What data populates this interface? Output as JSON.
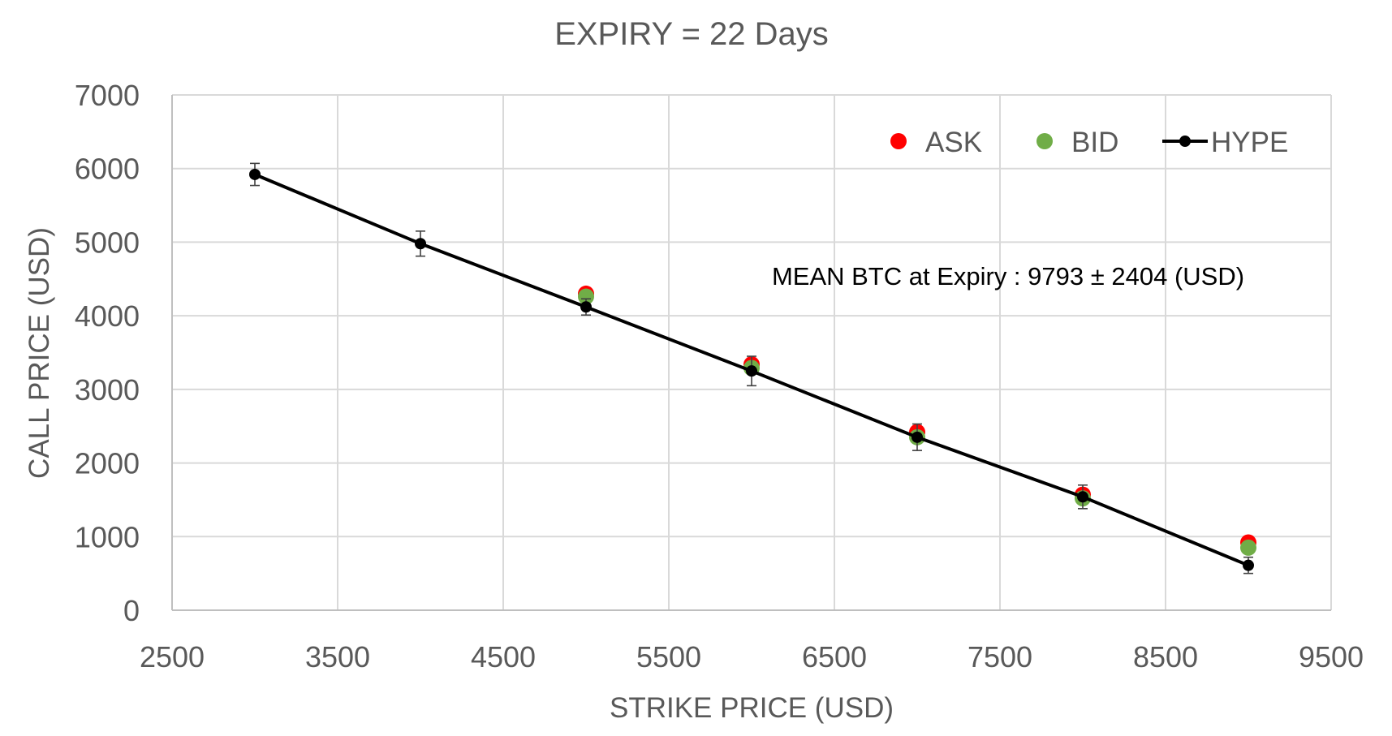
{
  "chart_data": {
    "type": "scatter",
    "title": "EXPIRY = 22 Days",
    "xlabel": "STRIKE PRICE (USD)",
    "ylabel": "CALL PRICE (USD)",
    "xlim": [
      2500,
      9500
    ],
    "ylim": [
      0,
      7000
    ],
    "xticks": [
      2500,
      3500,
      4500,
      5500,
      6500,
      7500,
      8500,
      9500
    ],
    "yticks": [
      0,
      1000,
      2000,
      3000,
      4000,
      5000,
      6000,
      7000
    ],
    "grid": true,
    "legend_position": "top-right",
    "annotation": "MEAN BTC at Expiry : 9793 ± 2404 (USD)",
    "series": [
      {
        "name": "ASK",
        "kind": "markers",
        "color": "#ff0000",
        "points": [
          [
            5000,
            4300
          ],
          [
            6000,
            3340
          ],
          [
            7000,
            2420
          ],
          [
            8000,
            1570
          ],
          [
            9000,
            920
          ]
        ]
      },
      {
        "name": "BID",
        "kind": "markers",
        "color": "#70ad47",
        "points": [
          [
            5000,
            4260
          ],
          [
            6000,
            3290
          ],
          [
            7000,
            2350
          ],
          [
            8000,
            1520
          ],
          [
            9000,
            850
          ]
        ]
      },
      {
        "name": "HYPE",
        "kind": "line-markers",
        "color": "#000000",
        "points": [
          [
            3000,
            5920
          ],
          [
            4000,
            4980
          ],
          [
            5000,
            4120
          ],
          [
            6000,
            3250
          ],
          [
            7000,
            2350
          ],
          [
            8000,
            1540
          ],
          [
            9000,
            610
          ]
        ],
        "error": [
          150,
          170,
          110,
          200,
          180,
          160,
          110
        ]
      }
    ]
  }
}
